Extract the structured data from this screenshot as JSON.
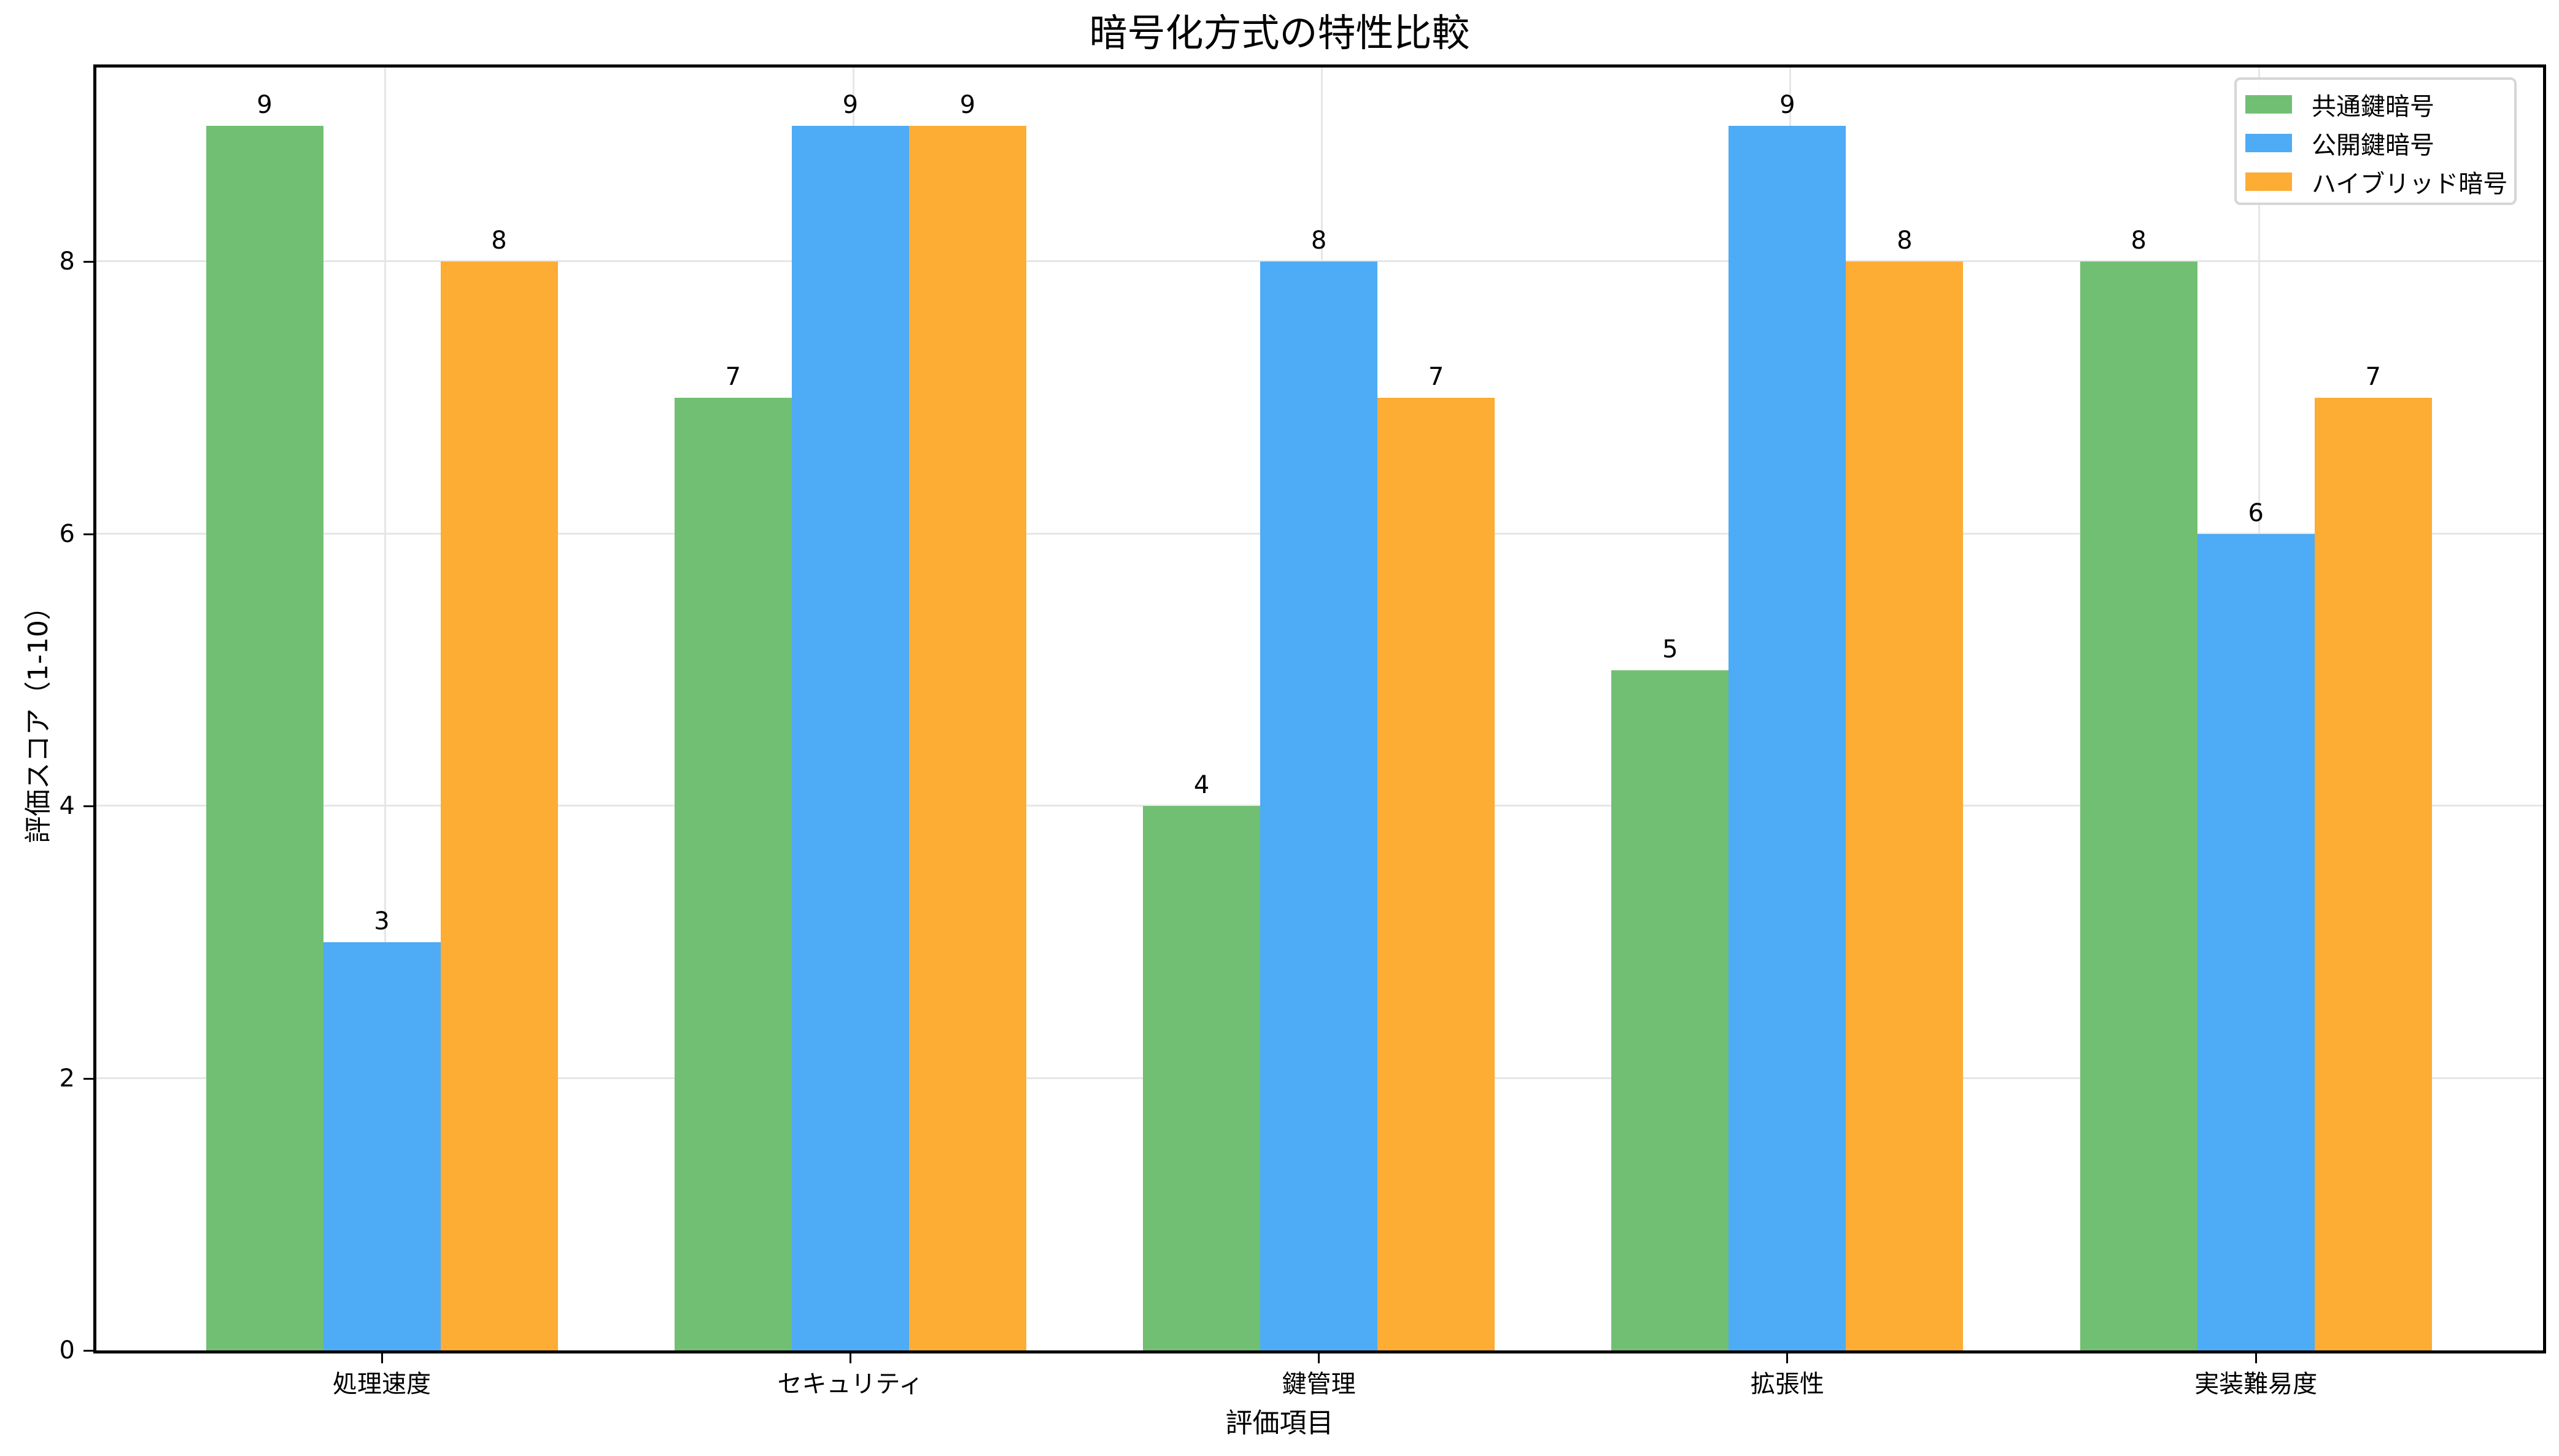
{
  "chart_data": {
    "type": "bar",
    "title": "暗号化方式の特性比較",
    "xlabel": "評価項目",
    "ylabel": "評価スコア（1-10）",
    "categories": [
      "処理速度",
      "セキュリティ",
      "鍵管理",
      "拡張性",
      "実装難易度"
    ],
    "series": [
      {
        "name": "共通鍵暗号",
        "color": "#71bf72",
        "values": [
          9,
          7,
          4,
          5,
          8
        ]
      },
      {
        "name": "公開鍵暗号",
        "color": "#4eabf5",
        "values": [
          3,
          9,
          8,
          9,
          6
        ]
      },
      {
        "name": "ハイブリッド暗号",
        "color": "#fdac34",
        "values": [
          8,
          9,
          7,
          8,
          7
        ]
      }
    ],
    "ylim": [
      0,
      9.45
    ],
    "yticks": [
      0,
      2,
      4,
      6,
      8
    ],
    "grid": true,
    "legend_position": "upper right",
    "bar_value_labels": true
  }
}
